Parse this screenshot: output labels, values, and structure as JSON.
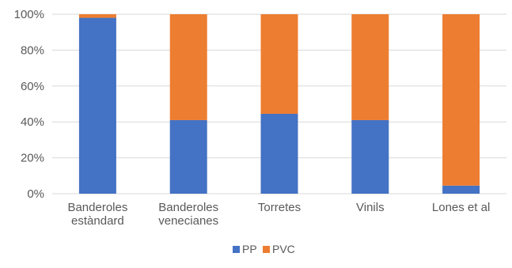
{
  "chart_data": {
    "type": "bar",
    "stacked": "percent",
    "categories": [
      [
        "Banderoles",
        "estàndard"
      ],
      [
        "Banderoles",
        "venecianes"
      ],
      [
        "Torretes"
      ],
      [
        "Vinils"
      ],
      [
        "Lones et al"
      ]
    ],
    "series": [
      {
        "name": "PP",
        "color": "#4472C4",
        "values": [
          98,
          41,
          44.5,
          41,
          4.5
        ]
      },
      {
        "name": "PVC",
        "color": "#ED7D31",
        "values": [
          2,
          59,
          55.5,
          59,
          95.5
        ]
      }
    ],
    "y_ticks": [
      "0%",
      "20%",
      "40%",
      "60%",
      "80%",
      "100%"
    ],
    "ylim": [
      0,
      100
    ],
    "grid": true,
    "legend": "bottom-center",
    "title": "",
    "xlabel": "",
    "ylabel": ""
  }
}
